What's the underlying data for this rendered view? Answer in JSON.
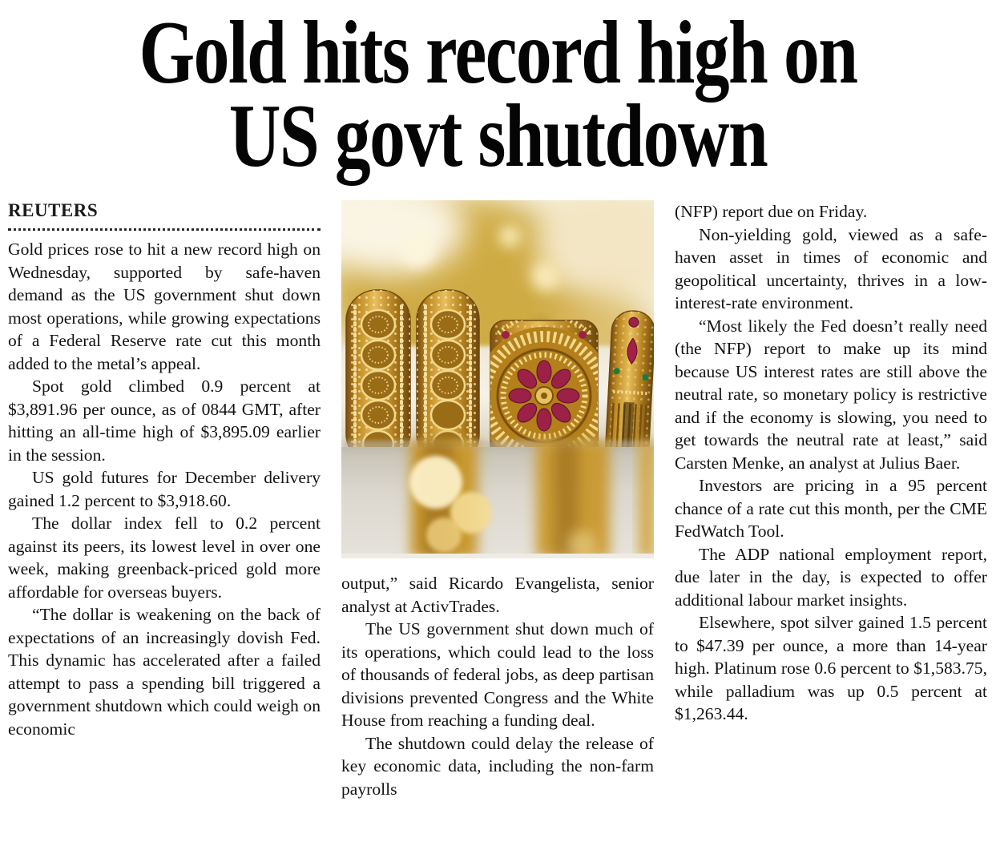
{
  "article": {
    "headline": {
      "line1": "Gold hits record high on",
      "line2": "US govt shutdown"
    },
    "byline": "REUTERS",
    "columns": {
      "left": [
        "Gold prices rose to hit a new record high on Wednesday, supported by safe-haven demand as the US government shut down most operations, while growing expectations of a Federal Reserve rate cut this month added to the metal’s appeal.",
        "Spot gold climbed 0.9 percent at $3,891.96 per ounce, as of 0844 GMT, after hitting an all-time high of $3,895.09 earlier in the session.",
        "US gold futures for December delivery gained 1.2 percent to $3,918.60.",
        "The dollar index fell to 0.2 percent against its peers, its lowest level in over one week, making greenback-priced gold more affordable for overseas buyers.",
        "“The dollar is weakening on the back of expectations of an increasingly dovish Fed. This dynamic has accelerated after a failed attempt to pass a spending bill triggered a government shutdown which could weigh on economic"
      ],
      "middle": [
        "output,” said Ricardo Evangelista, senior analyst at ActivTrades.",
        "The US government shut down much of its operations, which could lead to the loss of thousands of federal jobs, as deep partisan divisions prevented Congress and the White House from reaching a funding deal.",
        "The shutdown could delay the release of key economic data, including the non-farm payrolls"
      ],
      "right": [
        "(NFP) report due on Friday.",
        "Non-yielding gold, viewed as a safe-haven asset in times of economic and geopolitical uncertainty, thrives in a low-interest-rate environment.",
        "“Most likely the Fed doesn’t really need (the NFP) report to make up its mind because US interest rates are still above the neutral rate, so monetary policy is restrictive and if the economy is slowing, you need to get towards the neutral rate at least,” said Carsten Menke, an analyst at Julius Baer.",
        "Investors are pricing in a 95 percent chance of a rate cut this month, per the CME FedWatch Tool.",
        "The ADP national employment report, due later in the day, is expected to offer additional labour market insights.",
        "Elsewhere, spot silver gained 1.5 percent to $47.39 per ounce, a more than 14-year high. Platinum rose 0.6 percent to $1,583.75, while palladium was up 0.5 percent at $1,263.44."
      ]
    },
    "photo": {
      "description": "Close-up of ornate gold bangles on a white display roll at a jewellery shop, with blurred golden jewellery in the background",
      "palette": {
        "gold_dark": "#7a4f10",
        "gold": "#c89a2e",
        "gold_light": "#eed9a0",
        "gem_red": "#9c2147",
        "gem_green": "#1e7a3c",
        "background_cream": "#f2e8d2",
        "roll_grey": "#dbd7ce"
      }
    },
    "text_color": "#131313",
    "background_color": "#ffffff"
  }
}
